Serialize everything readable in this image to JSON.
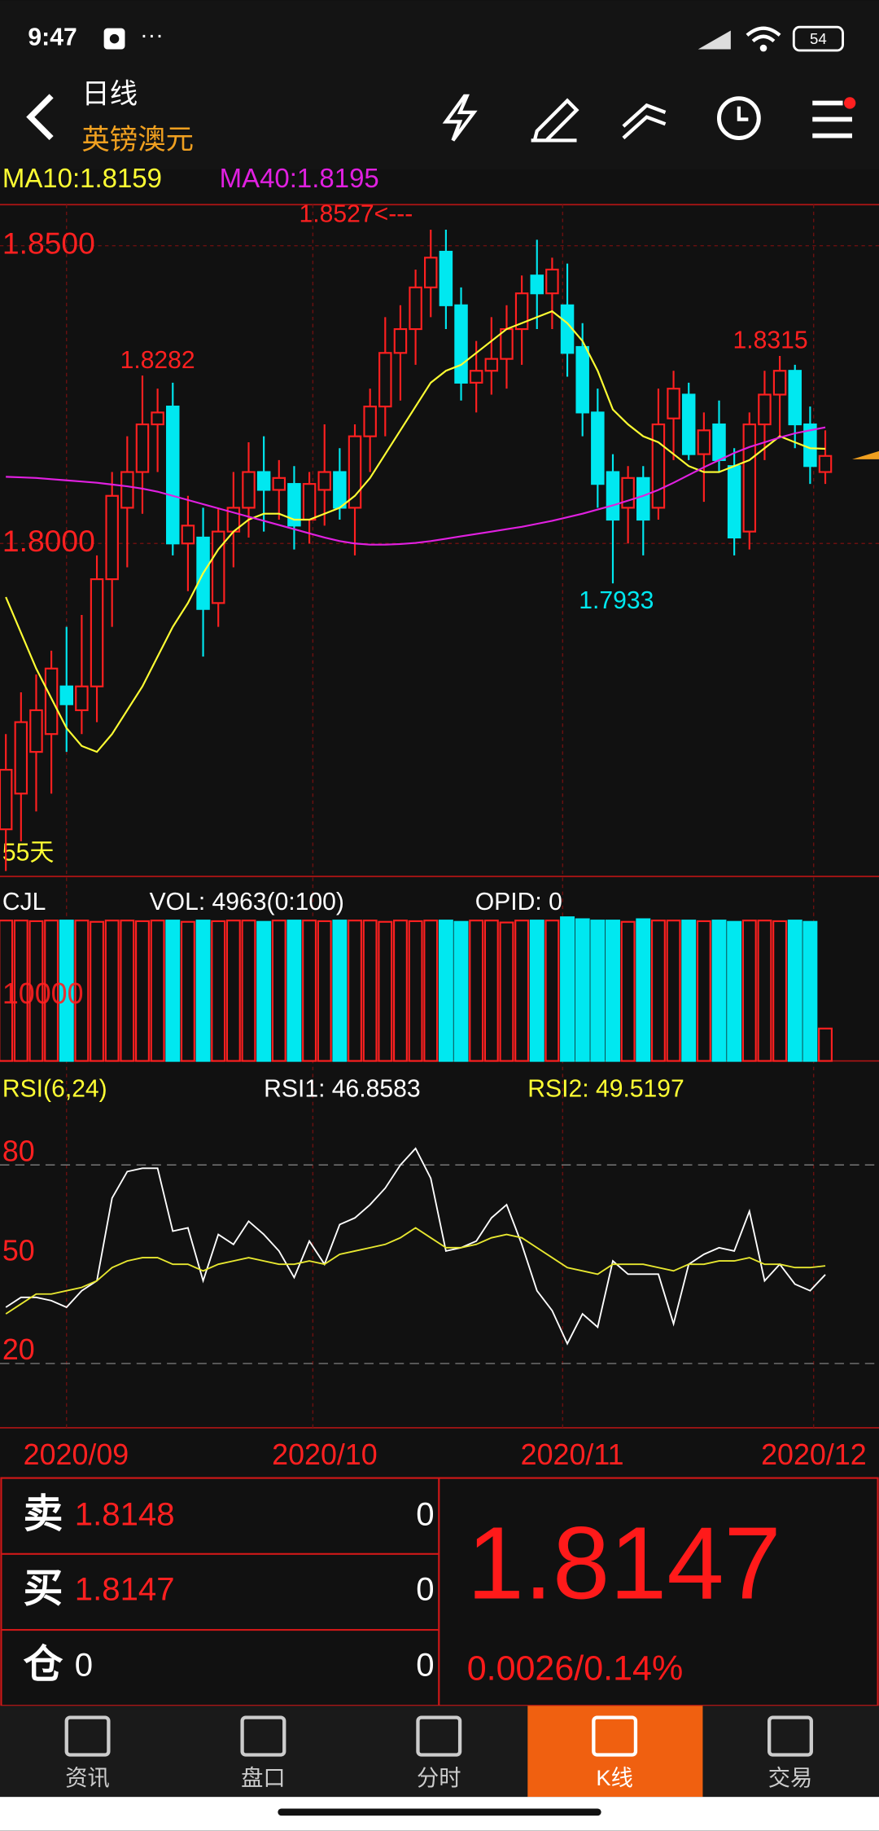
{
  "status_bar": {
    "time": "9:47",
    "battery": "54"
  },
  "header": {
    "period": "日线",
    "symbol": "英镑澳元"
  },
  "chart_data": [
    {
      "type": "candlestick",
      "ma_legend": [
        "MA10:1.8159",
        "MA40:1.8195"
      ],
      "ylim": [
        1.7441,
        1.8569
      ],
      "yticks": [
        {
          "value": 1.85,
          "label": "1.8500"
        },
        {
          "value": 1.8,
          "label": "1.8000"
        }
      ],
      "days_label": "55天",
      "annotations": [
        {
          "value": 1.8527,
          "label": "1.8527<---"
        },
        {
          "value": 1.8282,
          "label": "1.8282"
        },
        {
          "value": 1.8315,
          "label": "1.8315"
        },
        {
          "value": 1.7933,
          "label": "1.7933"
        }
      ],
      "up_color": "#ff2020",
      "down_color": "#00e8f0",
      "candles": [
        [
          1.752,
          1.768,
          1.745,
          1.762
        ],
        [
          1.758,
          1.775,
          1.75,
          1.77
        ],
        [
          1.765,
          1.778,
          1.755,
          1.772
        ],
        [
          1.768,
          1.782,
          1.758,
          1.779
        ],
        [
          1.776,
          1.786,
          1.765,
          1.773
        ],
        [
          1.772,
          1.788,
          1.768,
          1.776
        ],
        [
          1.776,
          1.798,
          1.77,
          1.794
        ],
        [
          1.794,
          1.812,
          1.786,
          1.808
        ],
        [
          1.806,
          1.818,
          1.796,
          1.812
        ],
        [
          1.812,
          1.8282,
          1.805,
          1.82
        ],
        [
          1.82,
          1.826,
          1.812,
          1.822
        ],
        [
          1.823,
          1.827,
          1.798,
          1.8
        ],
        [
          1.8,
          1.808,
          1.792,
          1.803
        ],
        [
          1.801,
          1.806,
          1.781,
          1.789
        ],
        [
          1.79,
          1.806,
          1.786,
          1.802
        ],
        [
          1.802,
          1.812,
          1.796,
          1.806
        ],
        [
          1.806,
          1.817,
          1.801,
          1.812
        ],
        [
          1.812,
          1.818,
          1.802,
          1.809
        ],
        [
          1.809,
          1.814,
          1.804,
          1.811
        ],
        [
          1.81,
          1.813,
          1.799,
          1.803
        ],
        [
          1.804,
          1.812,
          1.8,
          1.81
        ],
        [
          1.809,
          1.82,
          1.803,
          1.812
        ],
        [
          1.812,
          1.816,
          1.804,
          1.806
        ],
        [
          1.806,
          1.82,
          1.798,
          1.818
        ],
        [
          1.818,
          1.826,
          1.812,
          1.823
        ],
        [
          1.823,
          1.838,
          1.818,
          1.832
        ],
        [
          1.832,
          1.84,
          1.824,
          1.836
        ],
        [
          1.836,
          1.846,
          1.83,
          1.843
        ],
        [
          1.843,
          1.8527,
          1.838,
          1.848
        ],
        [
          1.849,
          1.8527,
          1.836,
          1.84
        ],
        [
          1.84,
          1.843,
          1.824,
          1.827
        ],
        [
          1.827,
          1.834,
          1.822,
          1.829
        ],
        [
          1.829,
          1.838,
          1.825,
          1.831
        ],
        [
          1.831,
          1.84,
          1.826,
          1.836
        ],
        [
          1.836,
          1.845,
          1.83,
          1.842
        ],
        [
          1.845,
          1.851,
          1.836,
          1.842
        ],
        [
          1.842,
          1.848,
          1.836,
          1.846
        ],
        [
          1.84,
          1.847,
          1.828,
          1.832
        ],
        [
          1.833,
          1.837,
          1.818,
          1.822
        ],
        [
          1.822,
          1.826,
          1.806,
          1.81
        ],
        [
          1.812,
          1.815,
          1.7933,
          1.804
        ],
        [
          1.806,
          1.813,
          1.8,
          1.811
        ],
        [
          1.811,
          1.813,
          1.798,
          1.804
        ],
        [
          1.806,
          1.826,
          1.804,
          1.82
        ],
        [
          1.821,
          1.829,
          1.814,
          1.826
        ],
        [
          1.825,
          1.827,
          1.814,
          1.815
        ],
        [
          1.815,
          1.822,
          1.807,
          1.819
        ],
        [
          1.82,
          1.824,
          1.812,
          1.814
        ],
        [
          1.813,
          1.816,
          1.798,
          1.801
        ],
        [
          1.802,
          1.822,
          1.799,
          1.82
        ],
        [
          1.82,
          1.829,
          1.814,
          1.825
        ],
        [
          1.825,
          1.8315,
          1.818,
          1.829
        ],
        [
          1.829,
          1.83,
          1.816,
          1.82
        ],
        [
          1.82,
          1.823,
          1.81,
          1.813
        ],
        [
          1.812,
          1.819,
          1.81,
          1.8147
        ]
      ],
      "series": [
        {
          "name": "MA10",
          "color": "#ffff33",
          "values": [
            1.791,
            1.785,
            1.779,
            1.774,
            1.769,
            1.766,
            1.765,
            1.768,
            1.772,
            1.776,
            1.781,
            1.786,
            1.79,
            1.795,
            1.799,
            1.802,
            1.804,
            1.805,
            1.805,
            1.804,
            1.804,
            1.805,
            1.806,
            1.808,
            1.811,
            1.815,
            1.819,
            1.823,
            1.827,
            1.829,
            1.83,
            1.832,
            1.834,
            1.836,
            1.837,
            1.838,
            1.839,
            1.837,
            1.834,
            1.829,
            1.8225,
            1.82,
            1.818,
            1.817,
            1.815,
            1.813,
            1.812,
            1.812,
            1.813,
            1.814,
            1.816,
            1.818,
            1.817,
            1.816,
            1.8159
          ]
        },
        {
          "name": "MA40",
          "color": "#e020e0",
          "values": [
            1.8112,
            1.8111,
            1.811,
            1.8108,
            1.8106,
            1.8104,
            1.8102,
            1.8099,
            1.8096,
            1.8092,
            1.8087,
            1.808,
            1.8073,
            1.8066,
            1.8059,
            1.8052,
            1.8045,
            1.8038,
            1.8031,
            1.8024,
            1.8017,
            1.801,
            1.8004,
            1.8,
            1.7998,
            1.7998,
            1.7999,
            1.8001,
            1.8004,
            1.8008,
            1.8012,
            1.8016,
            1.802,
            1.8024,
            1.8028,
            1.8033,
            1.8038,
            1.8044,
            1.805,
            1.8057,
            1.8064,
            1.8072,
            1.808,
            1.809,
            1.8102,
            1.8115,
            1.8128,
            1.814,
            1.8152,
            1.8162,
            1.817,
            1.8178,
            1.8185,
            1.819,
            1.8195
          ]
        }
      ],
      "x_labels": [
        "2020/09",
        "2020/10",
        "2020/11",
        "2020/12"
      ]
    },
    {
      "type": "bar",
      "title": "CJL",
      "legend": [
        "VOL: 4963(0:100)",
        "OPID: 0"
      ],
      "ylim": [
        0,
        22000
      ],
      "yticks": [
        10000
      ],
      "values": [
        21500,
        21500,
        21400,
        21500,
        21500,
        21500,
        21300,
        21500,
        21500,
        21400,
        21500,
        21500,
        21300,
        21500,
        21400,
        21500,
        21500,
        21300,
        21500,
        21500,
        21500,
        21400,
        21500,
        21500,
        21500,
        21300,
        21500,
        21400,
        21500,
        21500,
        21300,
        21500,
        21500,
        21200,
        21500,
        21500,
        21500,
        22000,
        21700,
        21500,
        21500,
        21300,
        21700,
        21500,
        21500,
        21500,
        21400,
        21500,
        21300,
        21500,
        21500,
        21400,
        21500,
        21300,
        4963
      ]
    },
    {
      "type": "line",
      "title": "RSI(6,24)",
      "legend": [
        "RSI1: 46.8583",
        "RSI2: 49.5197"
      ],
      "ylim": [
        0.6,
        96.6
      ],
      "yticks": [
        20,
        50,
        80
      ],
      "series": [
        {
          "name": "RSI1",
          "color": "#ffffff",
          "values": [
            37,
            40,
            40,
            39,
            37,
            42,
            45,
            70,
            78,
            79,
            79,
            60,
            61,
            45,
            59,
            56,
            63,
            59,
            54,
            46,
            57,
            50,
            62,
            64,
            68,
            73,
            80,
            85,
            76,
            54,
            55,
            57,
            64,
            68,
            56,
            42,
            36,
            26,
            35,
            31,
            51,
            47,
            47,
            47,
            32,
            50,
            53,
            55,
            54,
            66,
            45,
            50,
            44,
            42,
            46.8583
          ]
        },
        {
          "name": "RSI2",
          "color": "#e8e830",
          "values": [
            35,
            38,
            41,
            41,
            42,
            43,
            45,
            49,
            51,
            52,
            52,
            50,
            50,
            48,
            50,
            51,
            52,
            51,
            50,
            50,
            51,
            50,
            53,
            54,
            55,
            56,
            58,
            61,
            58,
            55,
            55,
            56,
            58,
            59,
            58,
            55,
            52,
            49,
            48,
            47,
            50,
            50,
            50,
            49,
            48,
            50,
            50,
            51,
            51,
            52,
            50,
            50,
            49,
            49,
            49.5197
          ]
        }
      ]
    }
  ],
  "quote": {
    "sell": {
      "label": "卖",
      "price": "1.8148",
      "qty": "0"
    },
    "buy": {
      "label": "买",
      "price": "1.8147",
      "qty": "0"
    },
    "position": {
      "label": "仓",
      "value": "0",
      "qty": "0"
    },
    "last": "1.8147",
    "change": "0.0026/0.14%"
  },
  "tabs": [
    "资讯",
    "盘口",
    "分时",
    "K线",
    "交易"
  ]
}
